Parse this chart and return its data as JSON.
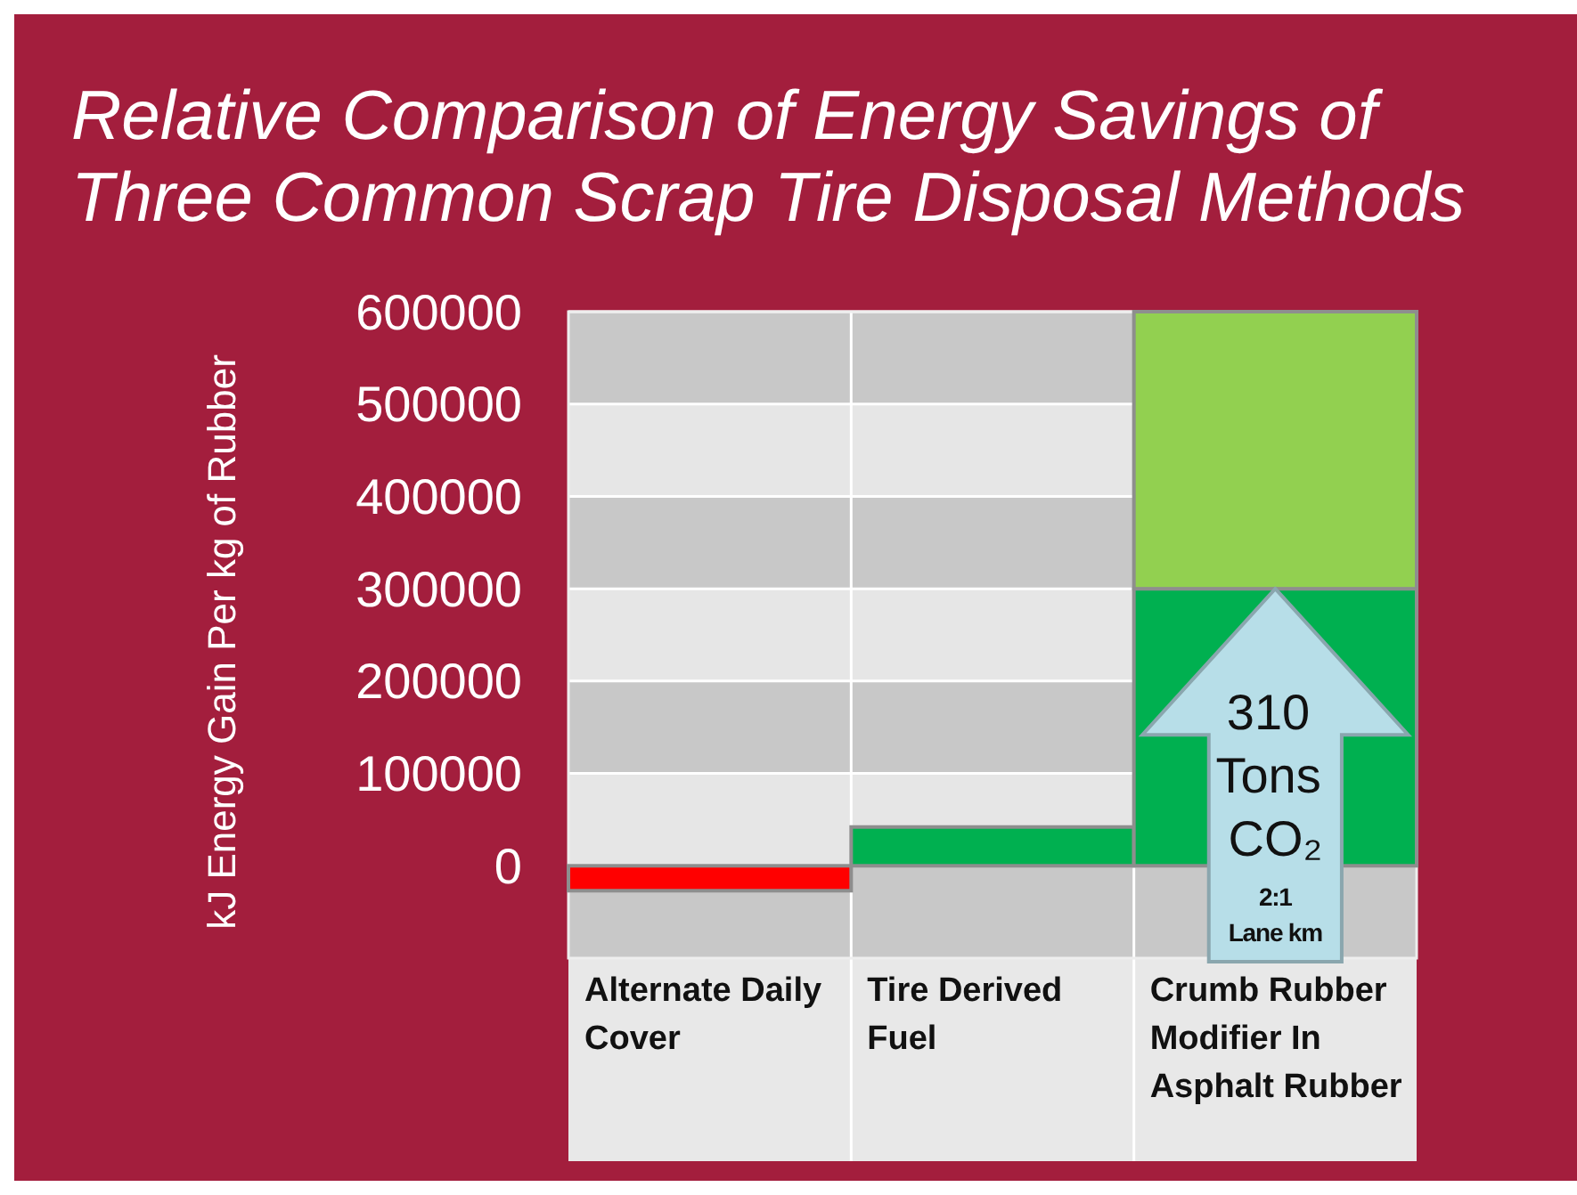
{
  "chart_data": {
    "type": "bar",
    "title": "Relative Comparison of Energy Savings of Three Common Scrap Tire Disposal Methods",
    "ylabel": "kJ Energy Gain Per kg of Rubber",
    "categories": [
      "Alternate Daily Cover",
      "Tire Derived Fuel",
      "Crumb Rubber Modifier In Asphalt Rubber"
    ],
    "series": [
      {
        "colors": [
          "#ff0000",
          "#00b050",
          "#00b050"
        ],
        "values": [
          -27000,
          42000,
          300000
        ]
      },
      {
        "color": "#92d050",
        "values": [
          null,
          null,
          300000
        ]
      }
    ],
    "stacked": true,
    "ylim": [
      -100000,
      600000
    ],
    "yticks": [
      0,
      100000,
      200000,
      300000,
      400000,
      500000,
      600000
    ],
    "grid": "y",
    "annotations": [
      {
        "text": "310 Tons CO₂",
        "x": "Crumb Rubber Modifier In Asphalt Rubber",
        "y": 300000
      },
      "2:1",
      "Lane km"
    ]
  }
}
